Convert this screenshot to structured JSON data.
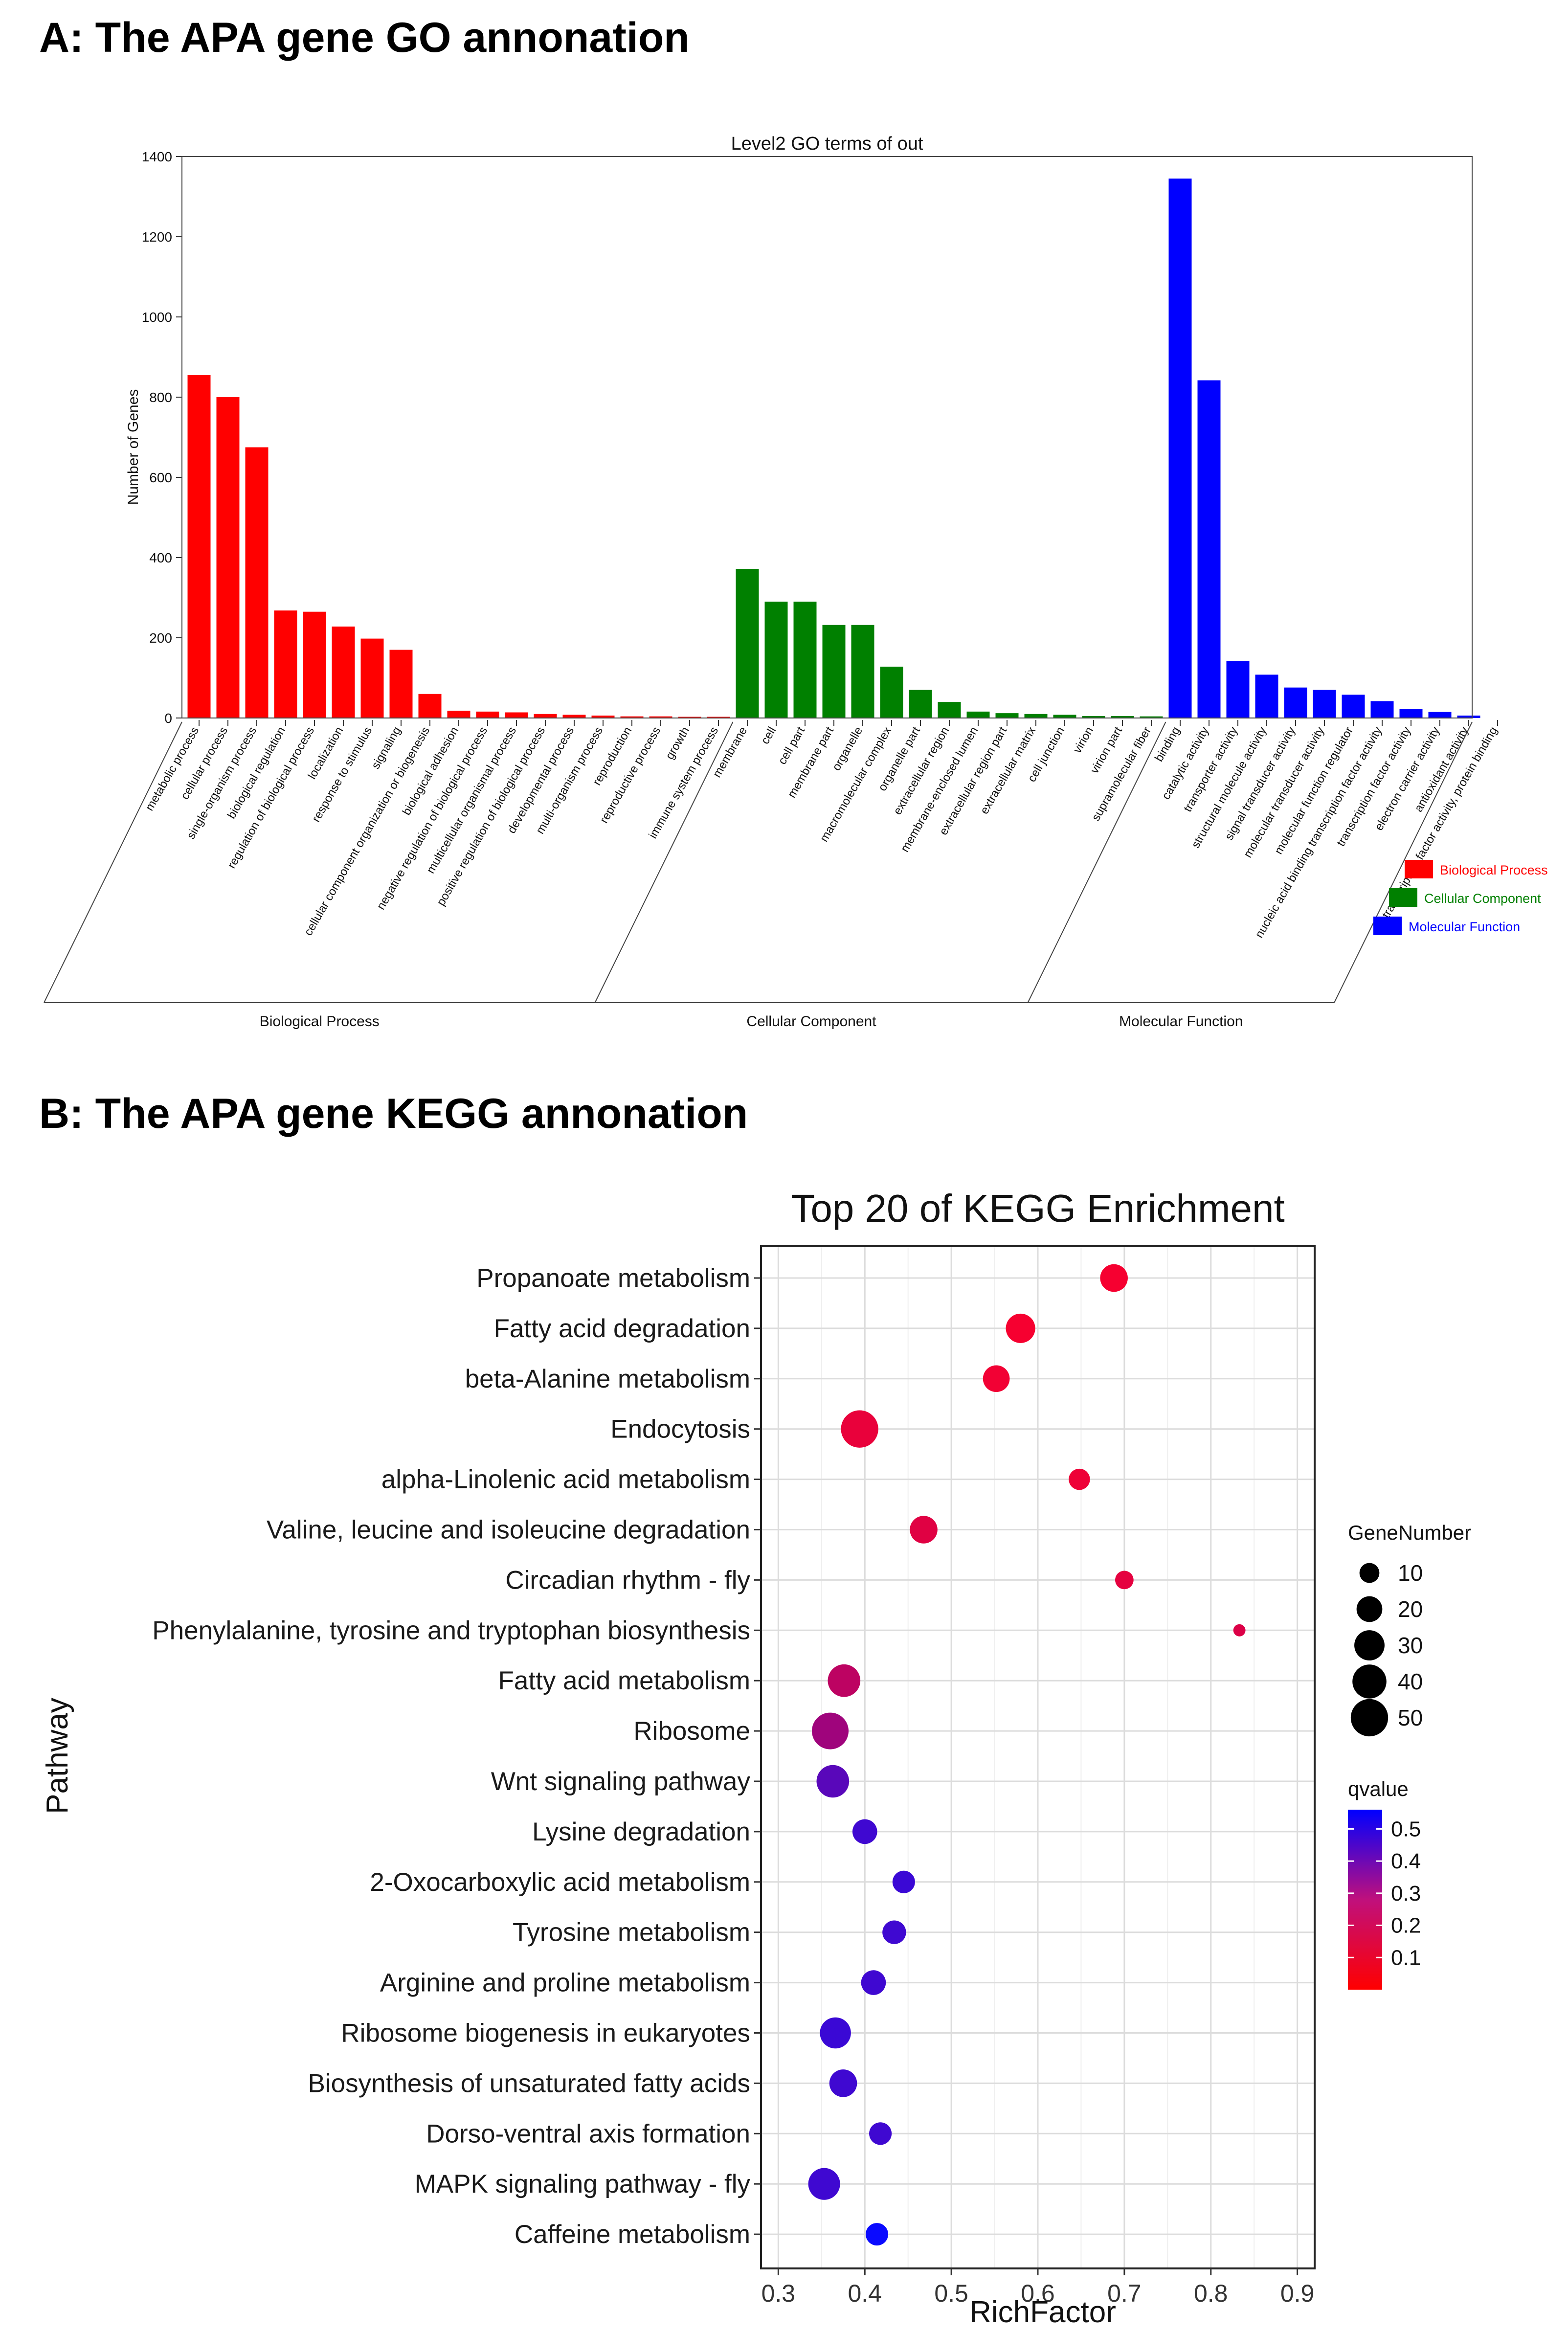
{
  "panel_a_title": "A: The APA gene GO annonation",
  "panel_b_title": "B: The APA gene KEGG annonation",
  "colors": {
    "biological_process": "#ff0000",
    "cellular_component": "#008000",
    "molecular_function": "#0000ff",
    "qvalue_low": "#ff0000",
    "qvalue_high": "#0000ff"
  },
  "chart_data": [
    {
      "type": "bar",
      "title": "Level2 GO terms of out",
      "ylabel": "Number of Genes",
      "xlabel": "",
      "ylim": [
        0,
        1400
      ],
      "yticks": [
        "0",
        "200",
        "400",
        "600",
        "800",
        "1000",
        "1200",
        "1400"
      ],
      "groups": [
        {
          "name": "Biological Process",
          "categories": [
            "metabolic process",
            "cellular process",
            "single-organism process",
            "biological regulation",
            "regulation of biological process",
            "localization",
            "response to stimulus",
            "signaling",
            "cellular component organization or biogenesis",
            "biological adhesion",
            "negative regulation of biological process",
            "multicellular organismal process",
            "positive regulation of biological process",
            "developmental process",
            "multi-organism process",
            "reproduction",
            "reproductive process",
            "growth",
            "immune system process"
          ],
          "values": [
            855,
            800,
            675,
            268,
            265,
            228,
            198,
            170,
            60,
            18,
            16,
            14,
            10,
            8,
            6,
            4,
            4,
            3,
            3
          ]
        },
        {
          "name": "Cellular Component",
          "categories": [
            "membrane",
            "cell",
            "cell part",
            "membrane part",
            "organelle",
            "macromolecular complex",
            "organelle part",
            "extracellular region",
            "membrane-enclosed lumen",
            "extracellular region part",
            "extracellular matrix",
            "cell junction",
            "virion",
            "virion part",
            "supramolecular fiber"
          ],
          "values": [
            372,
            290,
            290,
            232,
            232,
            128,
            70,
            40,
            16,
            12,
            10,
            8,
            5,
            5,
            4
          ]
        },
        {
          "name": "Molecular Function",
          "categories": [
            "binding",
            "catalytic activity",
            "transporter activity",
            "structural molecule activity",
            "signal transducer activity",
            "molecular transducer activity",
            "molecular function regulator",
            "nucleic acid binding transcription factor activity",
            "transcription factor activity",
            "electron carrier activity",
            "antioxidant activity",
            "transcription factor activity, protein binding"
          ],
          "values": [
            1345,
            842,
            142,
            108,
            76,
            70,
            58,
            42,
            22,
            15,
            6,
            0
          ]
        }
      ],
      "legend": [
        "Biological Process",
        "Cellular Component",
        "Molecular Function"
      ],
      "legend_position": "bottom-right"
    },
    {
      "type": "scatter",
      "title": "Top 20 of KEGG Enrichment",
      "xlabel": "RichFactor",
      "ylabel": "Pathway",
      "xlim": [
        0.28,
        0.92
      ],
      "xticks": [
        "0.3",
        "0.4",
        "0.5",
        "0.6",
        "0.7",
        "0.8",
        "0.9"
      ],
      "pathways": [
        "Propanoate metabolism",
        "Fatty acid degradation",
        "beta-Alanine metabolism",
        "Endocytosis",
        "alpha-Linolenic acid metabolism",
        "Valine, leucine and isoleucine degradation",
        "Circadian rhythm - fly",
        "Phenylalanine, tyrosine and tryptophan biosynthesis",
        "Fatty acid metabolism",
        "Ribosome",
        "Wnt signaling pathway",
        "Lysine degradation",
        "2-Oxocarboxylic acid metabolism",
        "Tyrosine metabolism",
        "Arginine and proline metabolism",
        "Ribosome biogenesis in eukaryotes",
        "Biosynthesis of unsaturated fatty acids",
        "Dorso-ventral axis formation",
        "MAPK signaling pathway - fly",
        "Caffeine metabolism"
      ],
      "rich_factor": [
        0.688,
        0.58,
        0.552,
        0.394,
        0.648,
        0.468,
        0.7,
        0.833,
        0.376,
        0.36,
        0.363,
        0.4,
        0.445,
        0.434,
        0.41,
        0.366,
        0.375,
        0.418,
        0.353,
        0.414
      ],
      "gene_number": [
        24,
        28,
        22,
        50,
        12,
        24,
        8,
        2,
        36,
        48,
        36,
        18,
        14,
        16,
        18,
        32,
        24,
        14,
        34,
        14
      ],
      "qvalue": [
        0.02,
        0.02,
        0.03,
        0.05,
        0.04,
        0.07,
        0.06,
        0.08,
        0.15,
        0.22,
        0.38,
        0.44,
        0.45,
        0.44,
        0.44,
        0.45,
        0.44,
        0.44,
        0.44,
        0.56
      ],
      "size_legend_title": "GeneNumber",
      "size_legend": [
        "10",
        "20",
        "30",
        "40",
        "50"
      ],
      "color_legend_title": "qvalue",
      "color_legend": [
        "0.5",
        "0.4",
        "0.3",
        "0.2",
        "0.1"
      ],
      "legend_position": "right"
    }
  ]
}
